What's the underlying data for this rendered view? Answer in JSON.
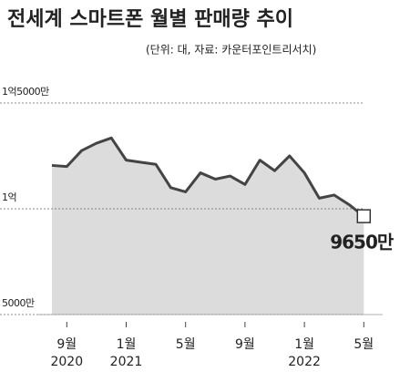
{
  "chart_data": {
    "type": "area",
    "title": "전세계 스마트폰 월별 판매량 추이",
    "subtitle": "(단위: 대, 자료: 카운터포인트리서치)",
    "categories": [
      null,
      "9월",
      null,
      null,
      null,
      "1월",
      null,
      null,
      null,
      "5월",
      null,
      null,
      null,
      "9월",
      null,
      null,
      null,
      "1월",
      null,
      null,
      null,
      "5월"
    ],
    "years": [
      null,
      "2020",
      null,
      null,
      null,
      "2021",
      null,
      null,
      null,
      null,
      null,
      null,
      null,
      null,
      null,
      null,
      null,
      "2022",
      null,
      null,
      null,
      null
    ],
    "values": [
      12050,
      12000,
      12750,
      13100,
      13350,
      12300,
      12200,
      12100,
      11000,
      10800,
      11700,
      11400,
      11550,
      11150,
      12300,
      11800,
      12500,
      11700,
      10500,
      10650,
      10200,
      9650
    ],
    "value_labels": [
      null,
      null,
      null,
      null,
      null,
      null,
      null,
      null,
      null,
      null,
      null,
      null,
      null,
      null,
      null,
      null,
      null,
      null,
      null,
      null,
      null,
      "9650만"
    ],
    "color": "#444444",
    "fill": "#dcdcdc",
    "ylim": [
      5000,
      15000
    ],
    "yticks": [
      {
        "value": 5000,
        "label": "5000만"
      },
      {
        "value": 10000,
        "label": "1억"
      },
      {
        "value": 15000,
        "label": "1억5000만"
      }
    ]
  }
}
